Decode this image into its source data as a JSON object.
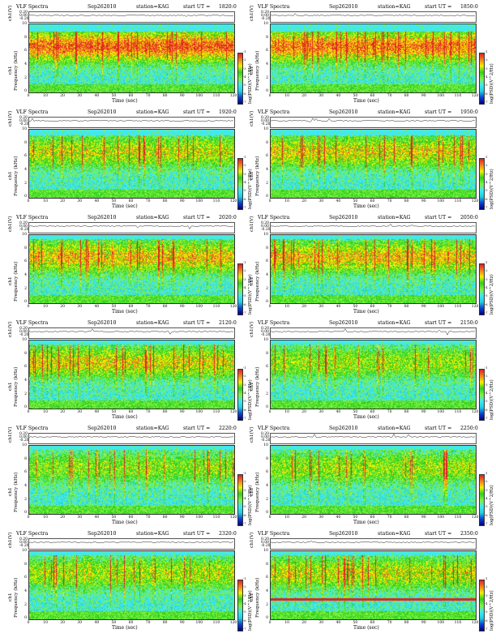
{
  "header": {
    "title": "VLF Spectra",
    "date": "Sep262010",
    "station": "station=KAG",
    "start_prefix": "start  UT ="
  },
  "axes": {
    "ts_ylabel": "ch1(V)",
    "ts_ticks": [
      "0.20",
      "0.00",
      "-0.20"
    ],
    "spec_ylabel_line1": "ch1",
    "spec_ylabel_line2": "Frequency (kHz)",
    "freq_ticks": [
      "10",
      "8",
      "6",
      "4",
      "2",
      "0"
    ],
    "xlabel": "Time (sec)",
    "time_ticks": [
      "0",
      "10",
      "20",
      "30",
      "40",
      "50",
      "60",
      "70",
      "80",
      "90",
      "100",
      "110",
      "120"
    ],
    "colorbar_label": "log(PSD)(V^2/Hz)",
    "colorbar_ticks": [
      "-1",
      "-2",
      "-3",
      "-4",
      "-5",
      "-6",
      "-7"
    ]
  },
  "colors": {
    "red": "#e02020",
    "orange": "#f08020",
    "yellow": "#f0f000",
    "green": "#30d020",
    "lightgreen": "#80f040",
    "cyan": "#20d0e0",
    "lightcyan": "#40e8f0",
    "blue": "#1040d0",
    "darkblue": "#000080"
  },
  "chart_data": [
    {
      "type": "heatmap",
      "start_ut": "1820:0",
      "xlim": [
        0,
        120
      ],
      "ylim": [
        0,
        10
      ],
      "intensity": 0.85,
      "cutoff_khz": 9.0,
      "band_line_khz": null
    },
    {
      "type": "heatmap",
      "start_ut": "1850:0",
      "xlim": [
        0,
        120
      ],
      "ylim": [
        0,
        10
      ],
      "intensity": 0.8,
      "cutoff_khz": 9.0,
      "band_line_khz": null
    },
    {
      "type": "heatmap",
      "start_ut": "1920:0",
      "xlim": [
        0,
        120
      ],
      "ylim": [
        0,
        10
      ],
      "intensity": 0.55,
      "cutoff_khz": 9.2,
      "band_line_khz": null
    },
    {
      "type": "heatmap",
      "start_ut": "1950:0",
      "xlim": [
        0,
        120
      ],
      "ylim": [
        0,
        10
      ],
      "intensity": 0.6,
      "cutoff_khz": 9.2,
      "band_line_khz": null
    },
    {
      "type": "heatmap",
      "start_ut": "2020:0",
      "xlim": [
        0,
        120
      ],
      "ylim": [
        0,
        10
      ],
      "intensity": 0.65,
      "cutoff_khz": 9.5,
      "band_line_khz": null
    },
    {
      "type": "heatmap",
      "start_ut": "2050:0",
      "xlim": [
        0,
        120
      ],
      "ylim": [
        0,
        10
      ],
      "intensity": 0.65,
      "cutoff_khz": 9.5,
      "band_line_khz": null
    },
    {
      "type": "heatmap",
      "start_ut": "2120:0",
      "xlim": [
        0,
        120
      ],
      "ylim": [
        0,
        10
      ],
      "intensity": 0.6,
      "cutoff_khz": 9.5,
      "band_line_khz": null
    },
    {
      "type": "heatmap",
      "start_ut": "2150:0",
      "xlim": [
        0,
        120
      ],
      "ylim": [
        0,
        10
      ],
      "intensity": 0.45,
      "cutoff_khz": 9.5,
      "band_line_khz": null
    },
    {
      "type": "heatmap",
      "start_ut": "2220:0",
      "xlim": [
        0,
        120
      ],
      "ylim": [
        0,
        10
      ],
      "intensity": 0.4,
      "cutoff_khz": 9.5,
      "band_line_khz": null
    },
    {
      "type": "heatmap",
      "start_ut": "2250:0",
      "xlim": [
        0,
        120
      ],
      "ylim": [
        0,
        10
      ],
      "intensity": 0.45,
      "cutoff_khz": 9.5,
      "band_line_khz": null
    },
    {
      "type": "heatmap",
      "start_ut": "2320:0",
      "xlim": [
        0,
        120
      ],
      "ylim": [
        0,
        10
      ],
      "intensity": 0.5,
      "cutoff_khz": 9.5,
      "band_line_khz": null
    },
    {
      "type": "heatmap",
      "start_ut": "2350:0",
      "xlim": [
        0,
        120
      ],
      "ylim": [
        0,
        10
      ],
      "intensity": 0.55,
      "cutoff_khz": 9.5,
      "band_line_khz": 3.0
    }
  ]
}
